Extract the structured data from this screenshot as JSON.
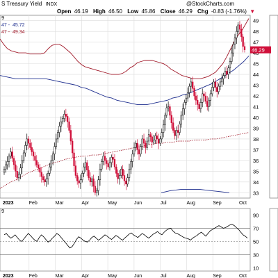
{
  "header": {
    "title": "S Treasury Yield",
    "exchange": "INDX",
    "watermark": "@StockCharts.com",
    "open_label": "Open",
    "open": "46.19",
    "high_label": "High",
    "high": "46.50",
    "low_label": "Low",
    "low": "45.86",
    "close_label": "Close",
    "close": "46.29",
    "chg_label": "Chg",
    "chg": "-0.83 (-1.76%)",
    "chg_marker": "▼"
  },
  "legend": {
    "line1": "9",
    "line2_prefix": "47 -",
    "line2_value": "45.72",
    "line3_prefix": "47 -",
    "line3_value": "49.34"
  },
  "lower_panel": {
    "label_prefix": "9"
  },
  "colors": {
    "up_candle": "#000000",
    "down_candle": "#d0103a",
    "bollinger": "#a11a2a",
    "moving_average_blue": "#1f2f8f",
    "moving_average_dotted": "#a11a2a",
    "price_label_bg": "#d0103a",
    "grid": "#dcdcdc"
  },
  "chart_data": [
    {
      "type": "candlestick",
      "x_tick_labels": [
        "2023",
        "Feb",
        "Mar",
        "Apr",
        "May",
        "Jun",
        "Jul",
        "Aug",
        "Sep",
        "Oct"
      ],
      "y_tick_labels": [
        "33",
        "34",
        "35",
        "36",
        "37",
        "38",
        "39",
        "40",
        "41",
        "42",
        "43",
        "44",
        "45",
        "46",
        "47",
        "48",
        "49"
      ],
      "ylim": [
        32.5,
        49.5
      ],
      "last_price_label": "46.29",
      "grid": true,
      "closes": [
        35.2,
        35.6,
        35.9,
        36.4,
        36.8,
        36.2,
        35.6,
        35.0,
        34.4,
        34.7,
        35.3,
        36.0,
        36.7,
        37.4,
        38.0,
        37.6,
        37.2,
        36.8,
        36.4,
        36.0,
        35.6,
        35.3,
        34.9,
        34.5,
        34.2,
        34.0,
        34.3,
        34.8,
        35.4,
        36.0,
        36.6,
        37.3,
        38.0,
        38.6,
        39.2,
        39.6,
        39.9,
        40.3,
        40.1,
        39.6,
        38.8,
        37.8,
        36.7,
        35.5,
        34.6,
        34.1,
        33.9,
        34.2,
        34.8,
        35.4,
        35.8,
        35.1,
        34.4,
        34.0,
        34.3,
        33.6,
        33.0,
        33.2,
        34.2,
        35.2,
        35.9,
        36.4,
        36.0,
        35.7,
        35.4,
        35.8,
        36.3,
        36.1,
        35.4,
        34.8,
        34.3,
        34.6,
        35.2,
        34.6,
        34.1,
        33.8,
        34.4,
        35.2,
        35.9,
        36.6,
        37.2,
        37.6,
        37.0,
        36.6,
        37.3,
        38.0,
        37.6,
        37.2,
        37.8,
        38.4,
        38.2,
        37.7,
        37.9,
        38.3,
        38.0,
        37.6,
        38.0,
        38.6,
        39.3,
        40.2,
        40.9,
        41.0,
        40.2,
        39.5,
        38.8,
        38.3,
        38.8,
        38.6,
        39.4,
        40.2,
        40.8,
        41.4,
        41.8,
        42.3,
        42.9,
        43.3,
        42.7,
        42.0,
        41.6,
        41.2,
        40.8,
        41.4,
        42.2,
        42.0,
        41.5,
        41.0,
        41.6,
        42.2,
        42.8,
        43.3,
        42.8,
        42.4,
        42.9,
        43.3,
        43.6,
        43.9,
        44.3,
        44.0,
        44.6,
        45.2,
        46.0,
        46.8,
        47.4,
        48.0,
        48.6,
        48.2,
        47.5,
        46.6,
        46.29
      ],
      "upper_band": [
        47.3,
        46.8,
        46.4,
        46.2,
        46.1,
        46.0,
        46.0,
        46.0,
        45.9,
        45.9,
        45.9,
        45.9,
        46.0,
        46.4,
        46.7,
        46.8,
        46.8,
        46.6,
        46.3,
        46.0,
        45.6,
        45.2,
        44.9,
        44.7,
        44.6,
        44.5,
        44.4,
        44.3,
        44.2,
        44.1,
        44.0,
        44.0,
        44.0,
        44.1,
        44.3,
        44.6,
        44.8,
        45.1,
        45.2,
        45.3,
        45.3,
        45.3,
        45.2,
        45.1,
        45.0,
        44.8,
        44.5,
        44.3,
        44.1,
        43.9,
        43.8,
        43.7,
        43.6,
        43.6,
        43.6,
        43.7,
        43.8,
        44.0,
        44.2,
        44.6,
        45.0,
        45.6,
        46.3,
        47.0,
        47.6,
        48.0,
        48.6,
        49.2
      ],
      "mid_band": [
        43.9,
        43.8,
        43.7,
        43.6,
        43.6,
        43.6,
        43.6,
        43.6,
        43.6,
        43.6,
        43.5,
        43.4,
        43.3,
        43.2,
        43.1,
        43.0,
        42.8,
        42.7,
        42.5,
        42.3,
        42.1,
        41.9,
        41.8,
        41.6,
        41.5,
        41.4,
        41.3,
        41.2,
        41.2,
        41.2,
        41.3,
        41.4,
        41.5,
        41.6,
        41.8,
        41.9,
        42.1,
        42.2,
        42.4,
        42.6,
        42.8,
        43.0,
        43.2,
        43.5,
        43.8,
        44.1,
        44.4,
        44.8,
        45.2,
        45.72
      ],
      "ma_dotted": [
        33.4,
        33.7,
        34.0,
        34.2,
        34.5,
        34.8,
        35.0,
        35.2,
        35.4,
        35.6,
        35.8,
        35.9,
        36.1,
        36.2,
        36.3,
        36.4,
        36.4,
        36.5,
        36.5,
        36.6,
        36.7,
        36.8,
        36.9,
        37.0,
        37.1,
        37.2,
        37.3,
        37.4,
        37.5,
        37.6,
        37.6,
        37.7,
        37.7,
        37.8,
        37.8,
        37.8,
        37.9,
        37.9,
        37.9,
        38.0,
        38.0,
        38.1,
        38.2,
        38.3,
        38.4,
        38.5,
        38.6
      ],
      "lower_band_partial": [
        33.0,
        33.2,
        33.3,
        33.3,
        33.3,
        33.2,
        33.1,
        33.0
      ]
    },
    {
      "type": "line",
      "ylim": [
        5,
        100
      ],
      "y_tick_labels": [
        "90",
        "70",
        "50",
        "30",
        "10"
      ],
      "reference_lines": [
        70,
        50,
        30
      ],
      "rsi": [
        60,
        62,
        58,
        55,
        57,
        60,
        56,
        52,
        50,
        54,
        58,
        62,
        59,
        55,
        52,
        50,
        56,
        60,
        57,
        53,
        49,
        51,
        55,
        58,
        62,
        60,
        56,
        52,
        48,
        44,
        40,
        42,
        47,
        53,
        57,
        55,
        52,
        50,
        49,
        52,
        56,
        58,
        55,
        52,
        54,
        57,
        60,
        58,
        55,
        53,
        56,
        59,
        57,
        54,
        52,
        55,
        58,
        61,
        63,
        60,
        58,
        56,
        59,
        62,
        60,
        57,
        55,
        58,
        61,
        63,
        65,
        62,
        60,
        64,
        67,
        69,
        70,
        66,
        63,
        62,
        60,
        58,
        56,
        55,
        54,
        52,
        55,
        57,
        59,
        62,
        64,
        61,
        58,
        62,
        66,
        68,
        70,
        72,
        74,
        72,
        70,
        71,
        73,
        75,
        76,
        74,
        71,
        68,
        64,
        60,
        58,
        55
      ]
    }
  ]
}
